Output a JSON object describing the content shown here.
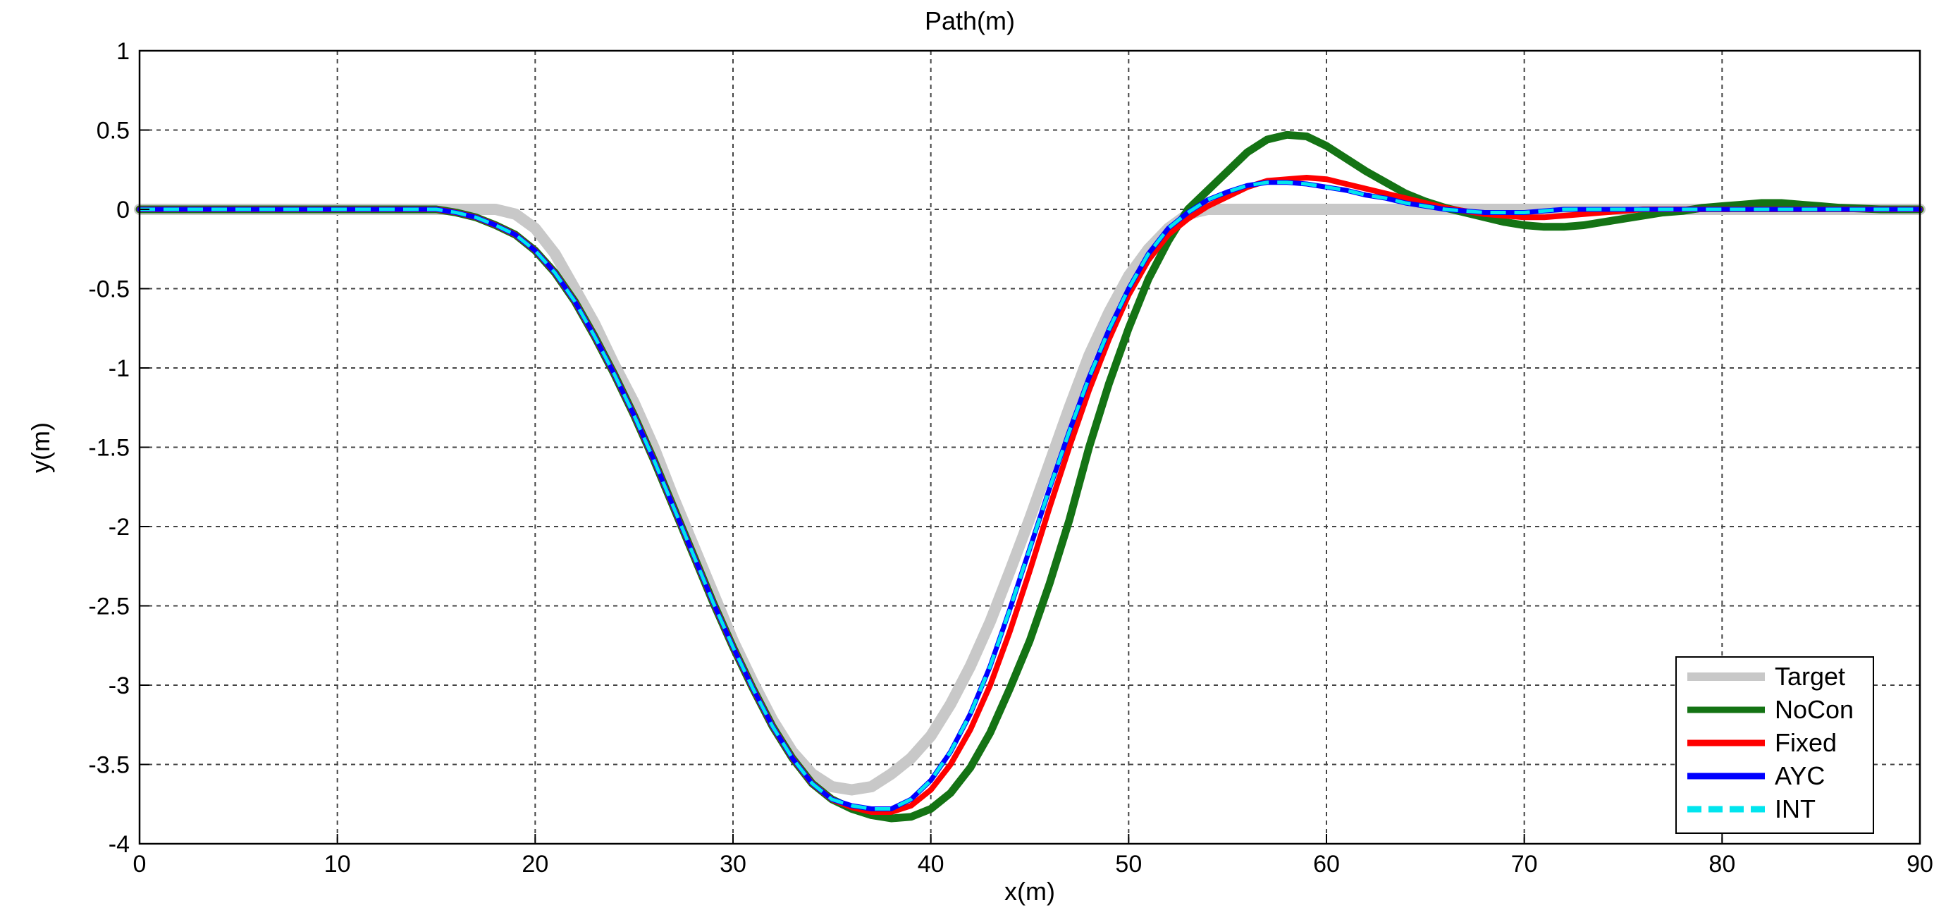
{
  "chart_data": {
    "type": "line",
    "title": "Path(m)",
    "xlabel": "x(m)",
    "ylabel": "y(m)",
    "xlim": [
      0,
      90
    ],
    "ylim": [
      -4,
      1
    ],
    "xticks": [
      "0",
      "10",
      "20",
      "30",
      "40",
      "50",
      "60",
      "70",
      "80",
      "90"
    ],
    "yticks": [
      "1",
      "0.5",
      "0",
      "-0.5",
      "-1",
      "-1.5",
      "-2",
      "-2.5",
      "-3",
      "-3.5",
      "-4"
    ],
    "grid": true,
    "legend_position": "bottom-right",
    "series": [
      {
        "name": "Target",
        "color": "#c8c8c8",
        "style": "solid",
        "points": [
          [
            0,
            0
          ],
          [
            15,
            0
          ],
          [
            18,
            0
          ],
          [
            19,
            -0.03
          ],
          [
            20,
            -0.12
          ],
          [
            21,
            -0.28
          ],
          [
            22,
            -0.5
          ],
          [
            23,
            -0.72
          ],
          [
            24,
            -0.98
          ],
          [
            25,
            -1.22
          ],
          [
            26,
            -1.5
          ],
          [
            27,
            -1.82
          ],
          [
            28,
            -2.12
          ],
          [
            29,
            -2.42
          ],
          [
            30,
            -2.72
          ],
          [
            31,
            -2.98
          ],
          [
            32,
            -3.22
          ],
          [
            33,
            -3.42
          ],
          [
            34,
            -3.56
          ],
          [
            35,
            -3.64
          ],
          [
            36,
            -3.66
          ],
          [
            37,
            -3.64
          ],
          [
            38,
            -3.56
          ],
          [
            39,
            -3.46
          ],
          [
            40,
            -3.32
          ],
          [
            41,
            -3.12
          ],
          [
            42,
            -2.88
          ],
          [
            43,
            -2.6
          ],
          [
            44,
            -2.28
          ],
          [
            45,
            -1.95
          ],
          [
            46,
            -1.6
          ],
          [
            47,
            -1.25
          ],
          [
            48,
            -0.92
          ],
          [
            49,
            -0.65
          ],
          [
            50,
            -0.42
          ],
          [
            51,
            -0.25
          ],
          [
            52,
            -0.12
          ],
          [
            53,
            -0.03
          ],
          [
            54,
            0
          ],
          [
            90,
            0
          ]
        ]
      },
      {
        "name": "NoCon",
        "color": "#147314",
        "style": "solid",
        "points": [
          [
            0,
            0
          ],
          [
            15,
            0
          ],
          [
            16,
            -0.02
          ],
          [
            17,
            -0.05
          ],
          [
            18,
            -0.1
          ],
          [
            19,
            -0.16
          ],
          [
            20,
            -0.26
          ],
          [
            21,
            -0.4
          ],
          [
            22,
            -0.58
          ],
          [
            23,
            -0.8
          ],
          [
            24,
            -1.04
          ],
          [
            25,
            -1.3
          ],
          [
            26,
            -1.58
          ],
          [
            27,
            -1.88
          ],
          [
            28,
            -2.18
          ],
          [
            29,
            -2.48
          ],
          [
            30,
            -2.76
          ],
          [
            31,
            -3.02
          ],
          [
            32,
            -3.26
          ],
          [
            33,
            -3.46
          ],
          [
            34,
            -3.62
          ],
          [
            35,
            -3.72
          ],
          [
            36,
            -3.78
          ],
          [
            37,
            -3.82
          ],
          [
            38,
            -3.84
          ],
          [
            39,
            -3.83
          ],
          [
            40,
            -3.78
          ],
          [
            41,
            -3.68
          ],
          [
            42,
            -3.52
          ],
          [
            43,
            -3.3
          ],
          [
            44,
            -3.02
          ],
          [
            45,
            -2.72
          ],
          [
            46,
            -2.36
          ],
          [
            47,
            -1.96
          ],
          [
            48,
            -1.5
          ],
          [
            49,
            -1.1
          ],
          [
            50,
            -0.75
          ],
          [
            51,
            -0.44
          ],
          [
            52,
            -0.2
          ],
          [
            53,
            0
          ],
          [
            54,
            0.12
          ],
          [
            55,
            0.24
          ],
          [
            56,
            0.36
          ],
          [
            57,
            0.44
          ],
          [
            58,
            0.47
          ],
          [
            59,
            0.46
          ],
          [
            60,
            0.4
          ],
          [
            61,
            0.32
          ],
          [
            62,
            0.24
          ],
          [
            63,
            0.17
          ],
          [
            64,
            0.1
          ],
          [
            65,
            0.05
          ],
          [
            66,
            0.01
          ],
          [
            67,
            -0.02
          ],
          [
            68,
            -0.05
          ],
          [
            69,
            -0.08
          ],
          [
            70,
            -0.1
          ],
          [
            71,
            -0.11
          ],
          [
            72,
            -0.11
          ],
          [
            73,
            -0.1
          ],
          [
            74,
            -0.08
          ],
          [
            75,
            -0.06
          ],
          [
            76,
            -0.04
          ],
          [
            77,
            -0.02
          ],
          [
            78,
            -0.01
          ],
          [
            79,
            0.01
          ],
          [
            80,
            0.02
          ],
          [
            81,
            0.03
          ],
          [
            82,
            0.04
          ],
          [
            83,
            0.04
          ],
          [
            84,
            0.03
          ],
          [
            85,
            0.02
          ],
          [
            86,
            0.01
          ],
          [
            88,
            0
          ],
          [
            90,
            0
          ]
        ]
      },
      {
        "name": "Fixed",
        "color": "#ff0000",
        "style": "solid",
        "points": [
          [
            0,
            0
          ],
          [
            15,
            0
          ],
          [
            16,
            -0.02
          ],
          [
            17,
            -0.05
          ],
          [
            18,
            -0.1
          ],
          [
            19,
            -0.16
          ],
          [
            20,
            -0.26
          ],
          [
            21,
            -0.4
          ],
          [
            22,
            -0.58
          ],
          [
            23,
            -0.8
          ],
          [
            24,
            -1.04
          ],
          [
            25,
            -1.3
          ],
          [
            26,
            -1.58
          ],
          [
            27,
            -1.88
          ],
          [
            28,
            -2.18
          ],
          [
            29,
            -2.48
          ],
          [
            30,
            -2.76
          ],
          [
            31,
            -3.02
          ],
          [
            32,
            -3.26
          ],
          [
            33,
            -3.46
          ],
          [
            34,
            -3.62
          ],
          [
            35,
            -3.72
          ],
          [
            36,
            -3.77
          ],
          [
            37,
            -3.8
          ],
          [
            38,
            -3.8
          ],
          [
            39,
            -3.76
          ],
          [
            40,
            -3.66
          ],
          [
            41,
            -3.5
          ],
          [
            42,
            -3.28
          ],
          [
            43,
            -3.0
          ],
          [
            44,
            -2.66
          ],
          [
            45,
            -2.28
          ],
          [
            46,
            -1.88
          ],
          [
            47,
            -1.5
          ],
          [
            48,
            -1.14
          ],
          [
            49,
            -0.82
          ],
          [
            50,
            -0.54
          ],
          [
            51,
            -0.32
          ],
          [
            52,
            -0.16
          ],
          [
            53,
            -0.06
          ],
          [
            54,
            0.02
          ],
          [
            55,
            0.08
          ],
          [
            56,
            0.14
          ],
          [
            57,
            0.18
          ],
          [
            58,
            0.19
          ],
          [
            59,
            0.2
          ],
          [
            60,
            0.19
          ],
          [
            61,
            0.16
          ],
          [
            62,
            0.13
          ],
          [
            63,
            0.1
          ],
          [
            64,
            0.07
          ],
          [
            65,
            0.04
          ],
          [
            66,
            0.01
          ],
          [
            67,
            -0.01
          ],
          [
            68,
            -0.03
          ],
          [
            69,
            -0.04
          ],
          [
            70,
            -0.05
          ],
          [
            71,
            -0.05
          ],
          [
            72,
            -0.04
          ],
          [
            73,
            -0.03
          ],
          [
            74,
            -0.02
          ],
          [
            75,
            -0.01
          ],
          [
            76,
            0
          ],
          [
            90,
            0
          ]
        ]
      },
      {
        "name": "AYC",
        "color": "#0000ff",
        "style": "solid",
        "points": [
          [
            0,
            0
          ],
          [
            15,
            0
          ],
          [
            16,
            -0.02
          ],
          [
            17,
            -0.05
          ],
          [
            18,
            -0.1
          ],
          [
            19,
            -0.16
          ],
          [
            20,
            -0.26
          ],
          [
            21,
            -0.4
          ],
          [
            22,
            -0.58
          ],
          [
            23,
            -0.8
          ],
          [
            24,
            -1.04
          ],
          [
            25,
            -1.3
          ],
          [
            26,
            -1.58
          ],
          [
            27,
            -1.88
          ],
          [
            28,
            -2.18
          ],
          [
            29,
            -2.48
          ],
          [
            30,
            -2.76
          ],
          [
            31,
            -3.02
          ],
          [
            32,
            -3.26
          ],
          [
            33,
            -3.46
          ],
          [
            34,
            -3.62
          ],
          [
            35,
            -3.72
          ],
          [
            36,
            -3.76
          ],
          [
            37,
            -3.78
          ],
          [
            38,
            -3.78
          ],
          [
            39,
            -3.72
          ],
          [
            40,
            -3.6
          ],
          [
            41,
            -3.42
          ],
          [
            42,
            -3.18
          ],
          [
            43,
            -2.88
          ],
          [
            44,
            -2.52
          ],
          [
            45,
            -2.14
          ],
          [
            46,
            -1.76
          ],
          [
            47,
            -1.4
          ],
          [
            48,
            -1.06
          ],
          [
            49,
            -0.76
          ],
          [
            50,
            -0.5
          ],
          [
            51,
            -0.28
          ],
          [
            52,
            -0.12
          ],
          [
            53,
            -0.02
          ],
          [
            54,
            0.06
          ],
          [
            55,
            0.11
          ],
          [
            56,
            0.15
          ],
          [
            57,
            0.17
          ],
          [
            58,
            0.17
          ],
          [
            59,
            0.16
          ],
          [
            60,
            0.14
          ],
          [
            61,
            0.12
          ],
          [
            62,
            0.09
          ],
          [
            63,
            0.07
          ],
          [
            64,
            0.04
          ],
          [
            65,
            0.02
          ],
          [
            66,
            0
          ],
          [
            67,
            -0.01
          ],
          [
            68,
            -0.02
          ],
          [
            69,
            -0.02
          ],
          [
            70,
            -0.02
          ],
          [
            71,
            -0.01
          ],
          [
            72,
            0
          ],
          [
            90,
            0
          ]
        ]
      },
      {
        "name": "INT",
        "color": "#00e5ee",
        "style": "dashed",
        "points": [
          [
            0,
            0
          ],
          [
            15,
            0
          ],
          [
            16,
            -0.02
          ],
          [
            17,
            -0.05
          ],
          [
            18,
            -0.1
          ],
          [
            19,
            -0.16
          ],
          [
            20,
            -0.26
          ],
          [
            21,
            -0.4
          ],
          [
            22,
            -0.58
          ],
          [
            23,
            -0.8
          ],
          [
            24,
            -1.04
          ],
          [
            25,
            -1.3
          ],
          [
            26,
            -1.58
          ],
          [
            27,
            -1.88
          ],
          [
            28,
            -2.18
          ],
          [
            29,
            -2.48
          ],
          [
            30,
            -2.76
          ],
          [
            31,
            -3.02
          ],
          [
            32,
            -3.26
          ],
          [
            33,
            -3.46
          ],
          [
            34,
            -3.62
          ],
          [
            35,
            -3.72
          ],
          [
            36,
            -3.76
          ],
          [
            37,
            -3.78
          ],
          [
            38,
            -3.78
          ],
          [
            39,
            -3.72
          ],
          [
            40,
            -3.6
          ],
          [
            41,
            -3.42
          ],
          [
            42,
            -3.18
          ],
          [
            43,
            -2.88
          ],
          [
            44,
            -2.52
          ],
          [
            45,
            -2.14
          ],
          [
            46,
            -1.76
          ],
          [
            47,
            -1.4
          ],
          [
            48,
            -1.06
          ],
          [
            49,
            -0.76
          ],
          [
            50,
            -0.5
          ],
          [
            51,
            -0.28
          ],
          [
            52,
            -0.12
          ],
          [
            53,
            -0.02
          ],
          [
            54,
            0.06
          ],
          [
            55,
            0.11
          ],
          [
            56,
            0.15
          ],
          [
            57,
            0.17
          ],
          [
            58,
            0.17
          ],
          [
            59,
            0.16
          ],
          [
            60,
            0.14
          ],
          [
            61,
            0.12
          ],
          [
            62,
            0.09
          ],
          [
            63,
            0.07
          ],
          [
            64,
            0.04
          ],
          [
            65,
            0.02
          ],
          [
            66,
            0
          ],
          [
            67,
            -0.01
          ],
          [
            68,
            -0.02
          ],
          [
            69,
            -0.02
          ],
          [
            70,
            -0.02
          ],
          [
            71,
            -0.01
          ],
          [
            72,
            0
          ],
          [
            90,
            0
          ]
        ]
      }
    ]
  }
}
